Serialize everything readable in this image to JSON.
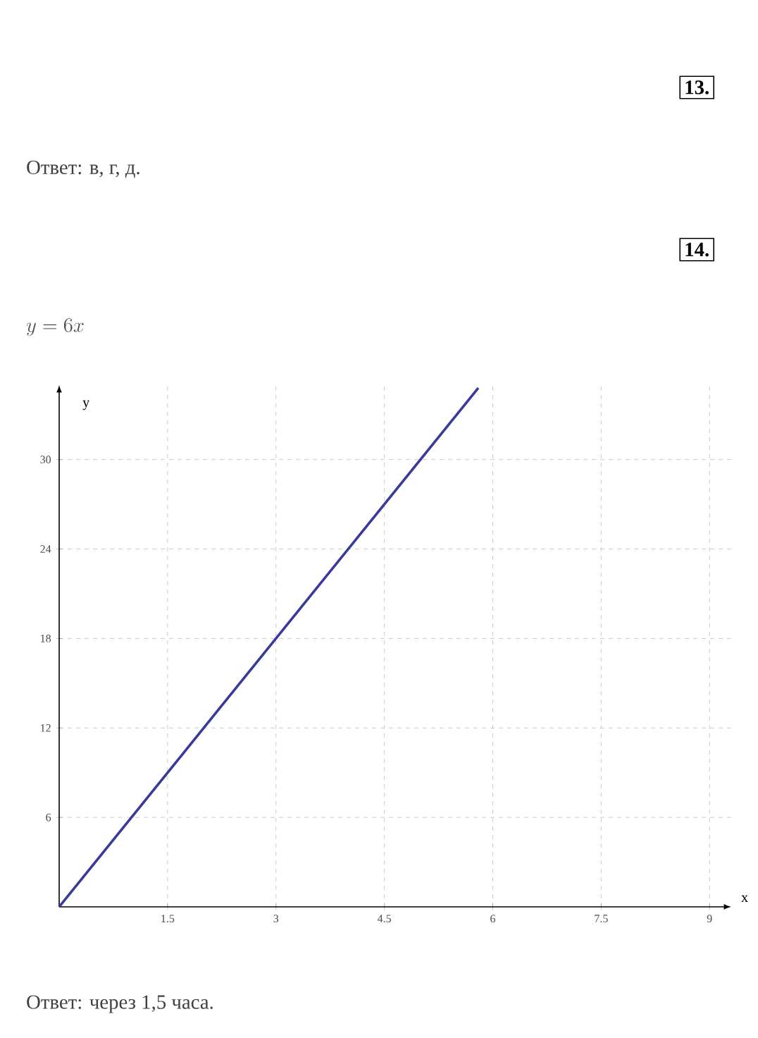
{
  "chart_data": {
    "type": "line",
    "title": "y = 6x",
    "xlabel": "x",
    "ylabel": "y",
    "annotations": [
      "13.",
      "Ответ: в, г, д.",
      "14.",
      "Ответ: через 1,5 часа."
    ],
    "x": [
      0,
      5.8
    ],
    "series": [
      {
        "color": "#3a3a9a",
        "values": [
          0,
          34.8
        ]
      }
    ],
    "xlim": [
      0,
      9.3
    ],
    "ylim": [
      0,
      35
    ],
    "xticks": [
      {
        "value": 1.5,
        "label": "1.5"
      },
      3,
      {
        "value": 4.5,
        "label": "4.5"
      },
      6,
      {
        "value": 7.5,
        "label": "7.5"
      },
      9
    ],
    "yticks": [
      6,
      12,
      18,
      24,
      30
    ],
    "grid": true,
    "marker": "none",
    "line_style": "solid"
  }
}
